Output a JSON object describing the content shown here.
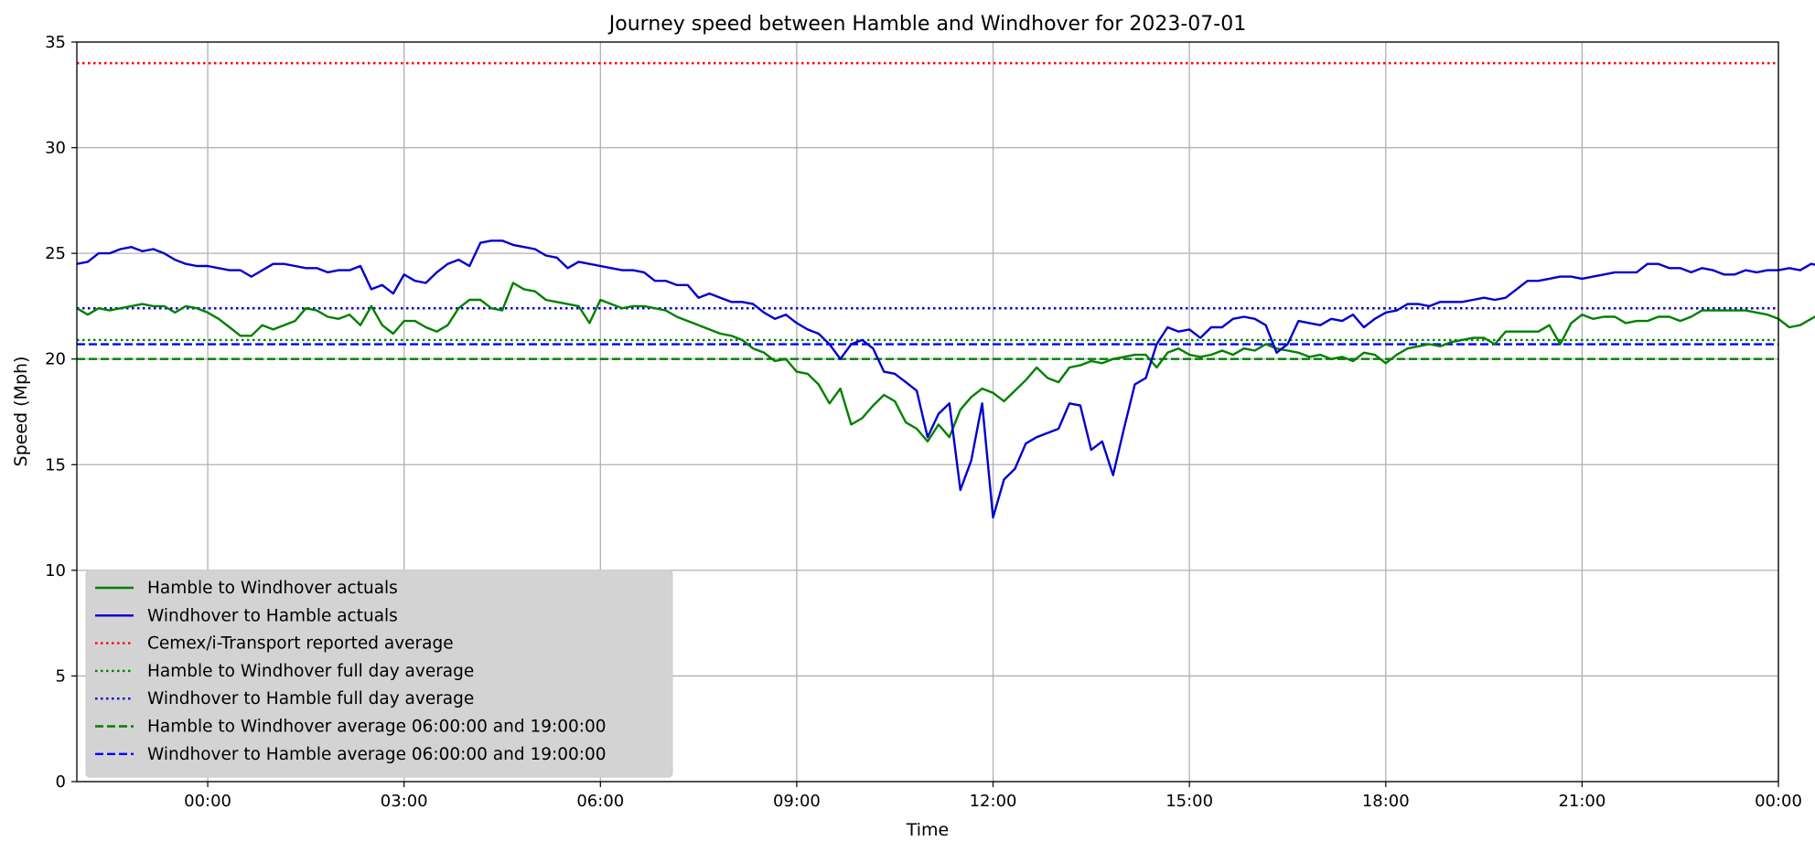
{
  "chart_data": {
    "type": "line",
    "title": "Journey speed between Hamble and Windhover for 2023-07-01",
    "xlabel": "Time",
    "ylabel": "Speed  (Mph)",
    "xlim": [
      "2023-06-30T22:00",
      "2023-07-02T00:00"
    ],
    "ylim": [
      0,
      35
    ],
    "x_ticks": [
      {
        "t": "2023-07-01T00:00",
        "label": "00:00"
      },
      {
        "t": "2023-07-01T03:00",
        "label": "03:00"
      },
      {
        "t": "2023-07-01T06:00",
        "label": "06:00"
      },
      {
        "t": "2023-07-01T09:00",
        "label": "09:00"
      },
      {
        "t": "2023-07-01T12:00",
        "label": "12:00"
      },
      {
        "t": "2023-07-01T15:00",
        "label": "15:00"
      },
      {
        "t": "2023-07-01T18:00",
        "label": "18:00"
      },
      {
        "t": "2023-07-01T21:00",
        "label": "21:00"
      },
      {
        "t": "2023-07-02T00:00",
        "label": "00:00"
      }
    ],
    "y_ticks": [
      0,
      5,
      10,
      15,
      20,
      25,
      30,
      35
    ],
    "grid": true,
    "legend_position": "lower-left",
    "series": [
      {
        "name": "Hamble to Windhover actuals",
        "color": "#008000",
        "style": "solid",
        "start": "2023-06-30T22:00",
        "interval_minutes": 10,
        "values": [
          22.4,
          22.1,
          22.4,
          22.3,
          22.4,
          22.5,
          22.6,
          22.5,
          22.5,
          22.2,
          22.5,
          22.4,
          22.2,
          21.9,
          21.5,
          21.1,
          21.1,
          21.6,
          21.4,
          21.6,
          21.8,
          22.4,
          22.3,
          22.0,
          21.9,
          22.1,
          21.6,
          22.5,
          21.6,
          21.2,
          21.8,
          21.8,
          21.5,
          21.3,
          21.6,
          22.4,
          22.8,
          22.8,
          22.4,
          22.3,
          23.6,
          23.3,
          23.2,
          22.8,
          22.7,
          22.6,
          22.5,
          21.7,
          22.8,
          22.6,
          22.4,
          22.5,
          22.5,
          22.4,
          22.3,
          22.0,
          21.8,
          21.6,
          21.4,
          21.2,
          21.1,
          20.9,
          20.5,
          20.3,
          19.9,
          20.0,
          19.4,
          19.3,
          18.8,
          17.9,
          18.6,
          16.9,
          17.2,
          17.8,
          18.3,
          18.0,
          17.0,
          16.7,
          16.1,
          16.9,
          16.3,
          17.6,
          18.2,
          18.6,
          18.4,
          18.0,
          18.5,
          19.0,
          19.6,
          19.1,
          18.9,
          19.6,
          19.7,
          19.9,
          19.8,
          20.0,
          20.1,
          20.2,
          20.2,
          19.6,
          20.3,
          20.5,
          20.2,
          20.1,
          20.2,
          20.4,
          20.2,
          20.5,
          20.4,
          20.7,
          20.5,
          20.4,
          20.3,
          20.1,
          20.2,
          20.0,
          20.1,
          19.9,
          20.3,
          20.2,
          19.8,
          20.2,
          20.5,
          20.6,
          20.7,
          20.6,
          20.8,
          20.9,
          21.0,
          21.0,
          20.7,
          21.3,
          21.3,
          21.3,
          21.3,
          21.6,
          20.7,
          21.7,
          22.1,
          21.9,
          22.0,
          22.0,
          21.7,
          21.8,
          21.8,
          22.0,
          22.0,
          21.8,
          22.0,
          22.3,
          22.3,
          22.3,
          22.3,
          22.3,
          22.2,
          22.1,
          21.9,
          21.5,
          21.6,
          21.9,
          22.2,
          22.1,
          22.4,
          22.4,
          22.3,
          22.5
        ]
      },
      {
        "name": "Windhover to Hamble actuals",
        "color": "#0000cd",
        "style": "solid",
        "start": "2023-06-30T22:00",
        "interval_minutes": 10,
        "values": [
          24.5,
          24.6,
          25.0,
          25.0,
          25.2,
          25.3,
          25.1,
          25.2,
          25.0,
          24.7,
          24.5,
          24.4,
          24.4,
          24.3,
          24.2,
          24.2,
          23.9,
          24.2,
          24.5,
          24.5,
          24.4,
          24.3,
          24.3,
          24.1,
          24.2,
          24.2,
          24.4,
          23.3,
          23.5,
          23.1,
          24.0,
          23.7,
          23.6,
          24.1,
          24.5,
          24.7,
          24.4,
          25.5,
          25.6,
          25.6,
          25.4,
          25.3,
          25.2,
          24.9,
          24.8,
          24.3,
          24.6,
          24.5,
          24.4,
          24.3,
          24.2,
          24.2,
          24.1,
          23.7,
          23.7,
          23.5,
          23.5,
          22.9,
          23.1,
          22.9,
          22.7,
          22.7,
          22.6,
          22.2,
          21.9,
          22.1,
          21.7,
          21.4,
          21.2,
          20.7,
          20.0,
          20.7,
          20.9,
          20.5,
          19.4,
          19.3,
          18.9,
          18.5,
          16.3,
          17.4,
          17.9,
          13.8,
          15.2,
          17.9,
          12.5,
          14.3,
          14.8,
          16.0,
          16.3,
          16.5,
          16.7,
          17.9,
          17.8,
          15.7,
          16.1,
          14.5,
          16.7,
          18.8,
          19.1,
          20.7,
          21.5,
          21.3,
          21.4,
          21.0,
          21.5,
          21.5,
          21.9,
          22.0,
          21.9,
          21.6,
          20.3,
          20.7,
          21.8,
          21.7,
          21.6,
          21.9,
          21.8,
          22.1,
          21.5,
          21.9,
          22.2,
          22.3,
          22.6,
          22.6,
          22.5,
          22.7,
          22.7,
          22.7,
          22.8,
          22.9,
          22.8,
          22.9,
          23.3,
          23.7,
          23.7,
          23.8,
          23.9,
          23.9,
          23.8,
          23.9,
          24.0,
          24.1,
          24.1,
          24.1,
          24.5,
          24.5,
          24.3,
          24.3,
          24.1,
          24.3,
          24.2,
          24.0,
          24.0,
          24.2,
          24.1,
          24.2,
          24.2,
          24.3,
          24.2,
          24.5,
          24.4,
          24.3,
          24.4,
          24.5,
          24.5,
          24.5
        ]
      }
    ],
    "reference_lines": [
      {
        "name": "Cemex/i-Transport reported average",
        "value": 34.0,
        "color": "#ff0000",
        "style": "dotted"
      },
      {
        "name": "Hamble to Windhover full day average",
        "value": 20.9,
        "color": "#008000",
        "style": "dotted"
      },
      {
        "name": "Windhover to Hamble full day average",
        "value": 22.4,
        "color": "#0000cd",
        "style": "dotted"
      },
      {
        "name": "Hamble to Windhover average 06:00:00 and 19:00:00",
        "value": 20.0,
        "color": "#008000",
        "style": "dashed"
      },
      {
        "name": "Windhover to Hamble average 06:00:00 and 19:00:00",
        "value": 20.7,
        "color": "#0000ff",
        "style": "dashed"
      }
    ]
  }
}
